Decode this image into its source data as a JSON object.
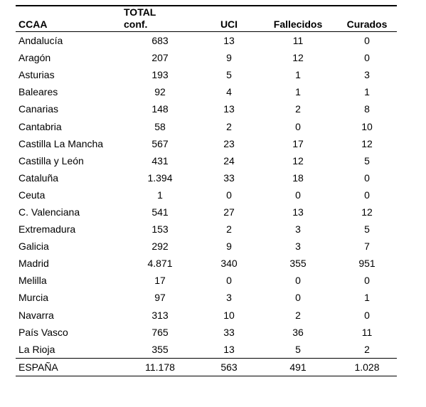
{
  "headers": {
    "ccaa": "CCAA",
    "total_line1": "TOTAL",
    "total_line2": "conf.",
    "uci": "UCI",
    "fallecidos": "Fallecidos",
    "curados": "Curados"
  },
  "rows": [
    [
      "Andalucía",
      "683",
      "13",
      "11",
      "0"
    ],
    [
      "Aragón",
      "207",
      "9",
      "12",
      "0"
    ],
    [
      "Asturias",
      "193",
      "5",
      "1",
      "3"
    ],
    [
      "Baleares",
      "92",
      "4",
      "1",
      "1"
    ],
    [
      "Canarias",
      "148",
      "13",
      "2",
      "8"
    ],
    [
      "Cantabria",
      "58",
      "2",
      "0",
      "10"
    ],
    [
      "Castilla La Mancha",
      "567",
      "23",
      "17",
      "12"
    ],
    [
      "Castilla y León",
      "431",
      "24",
      "12",
      "5"
    ],
    [
      "Cataluña",
      "1.394",
      "33",
      "18",
      "0"
    ],
    [
      "Ceuta",
      "1",
      "0",
      "0",
      "0"
    ],
    [
      "C. Valenciana",
      "541",
      "27",
      "13",
      "12"
    ],
    [
      "Extremadura",
      "153",
      "2",
      "3",
      "5"
    ],
    [
      "Galicia",
      "292",
      "9",
      "3",
      "7"
    ],
    [
      "Madrid",
      "4.871",
      "340",
      "355",
      "951"
    ],
    [
      "Melilla",
      "17",
      "0",
      "0",
      "0"
    ],
    [
      "Murcia",
      "97",
      "3",
      "0",
      "1"
    ],
    [
      "Navarra",
      "313",
      "10",
      "2",
      "0"
    ],
    [
      "País Vasco",
      "765",
      "33",
      "36",
      "11"
    ],
    [
      "La Rioja",
      "355",
      "13",
      "5",
      "2"
    ]
  ],
  "total": [
    "ESPAÑA",
    "11.178",
    "563",
    "491",
    "1.028"
  ]
}
